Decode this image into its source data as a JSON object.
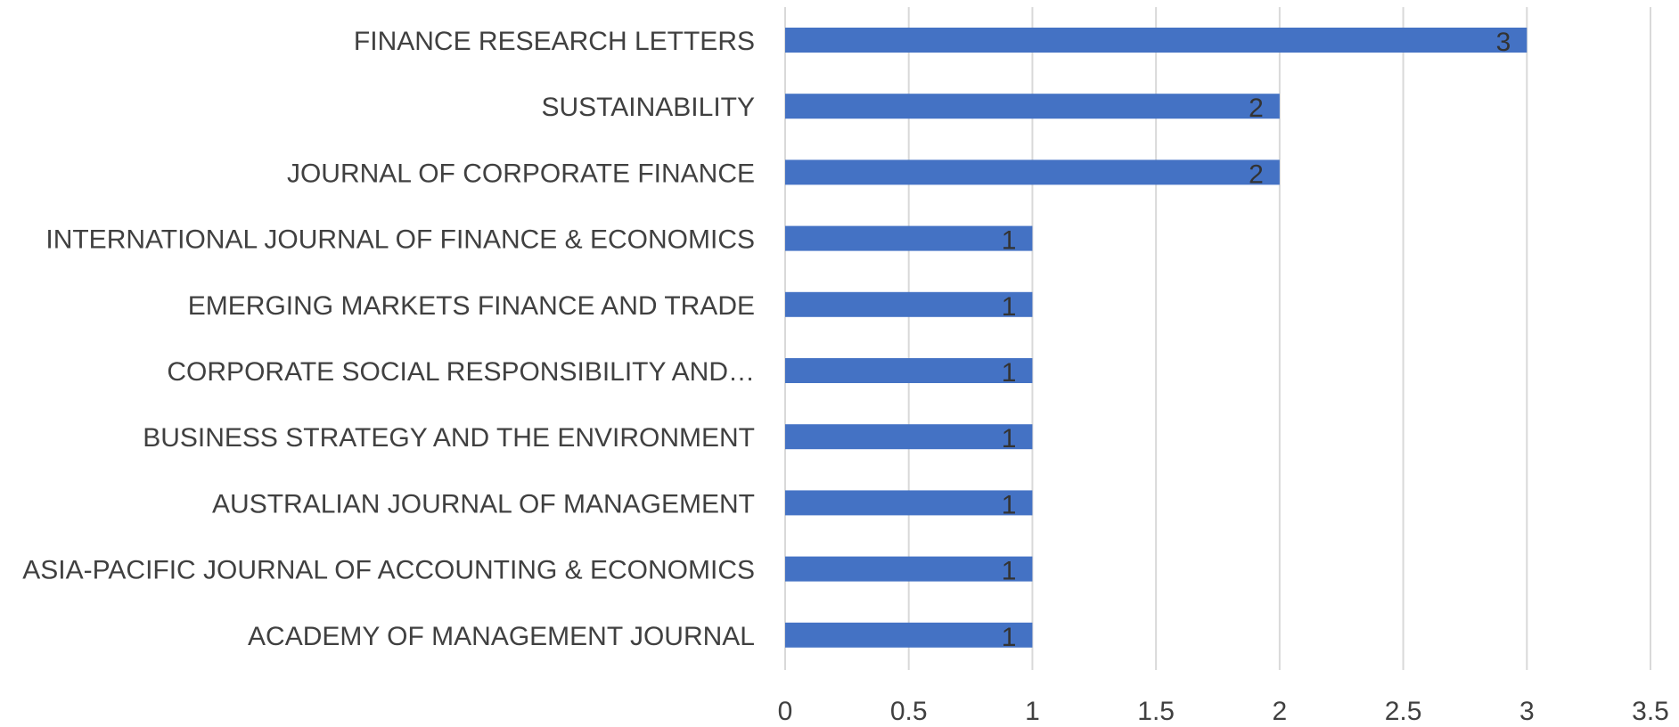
{
  "chart_data": {
    "type": "bar",
    "orientation": "horizontal",
    "title": "",
    "xlabel": "",
    "ylabel": "",
    "categories": [
      "FINANCE RESEARCH LETTERS",
      "SUSTAINABILITY",
      "JOURNAL OF CORPORATE FINANCE",
      "INTERNATIONAL JOURNAL OF FINANCE & ECONOMICS",
      "EMERGING MARKETS FINANCE AND TRADE",
      "CORPORATE SOCIAL RESPONSIBILITY AND…",
      "BUSINESS STRATEGY AND THE ENVIRONMENT",
      "AUSTRALIAN JOURNAL OF MANAGEMENT",
      "ASIA-PACIFIC JOURNAL OF ACCOUNTING & ECONOMICS",
      "ACADEMY OF MANAGEMENT JOURNAL"
    ],
    "values": [
      3,
      2,
      2,
      1,
      1,
      1,
      1,
      1,
      1,
      1
    ],
    "xlim": [
      0,
      3.5
    ],
    "xticks": [
      "0",
      "0.5",
      "1",
      "1.5",
      "2",
      "2.5",
      "3",
      "3.5"
    ],
    "xtick_values": [
      0,
      0.5,
      1,
      1.5,
      2,
      2.5,
      3,
      3.5
    ],
    "grid": "vertical",
    "legend": "none",
    "data_labels": true,
    "bar_color": "#4472c4"
  }
}
